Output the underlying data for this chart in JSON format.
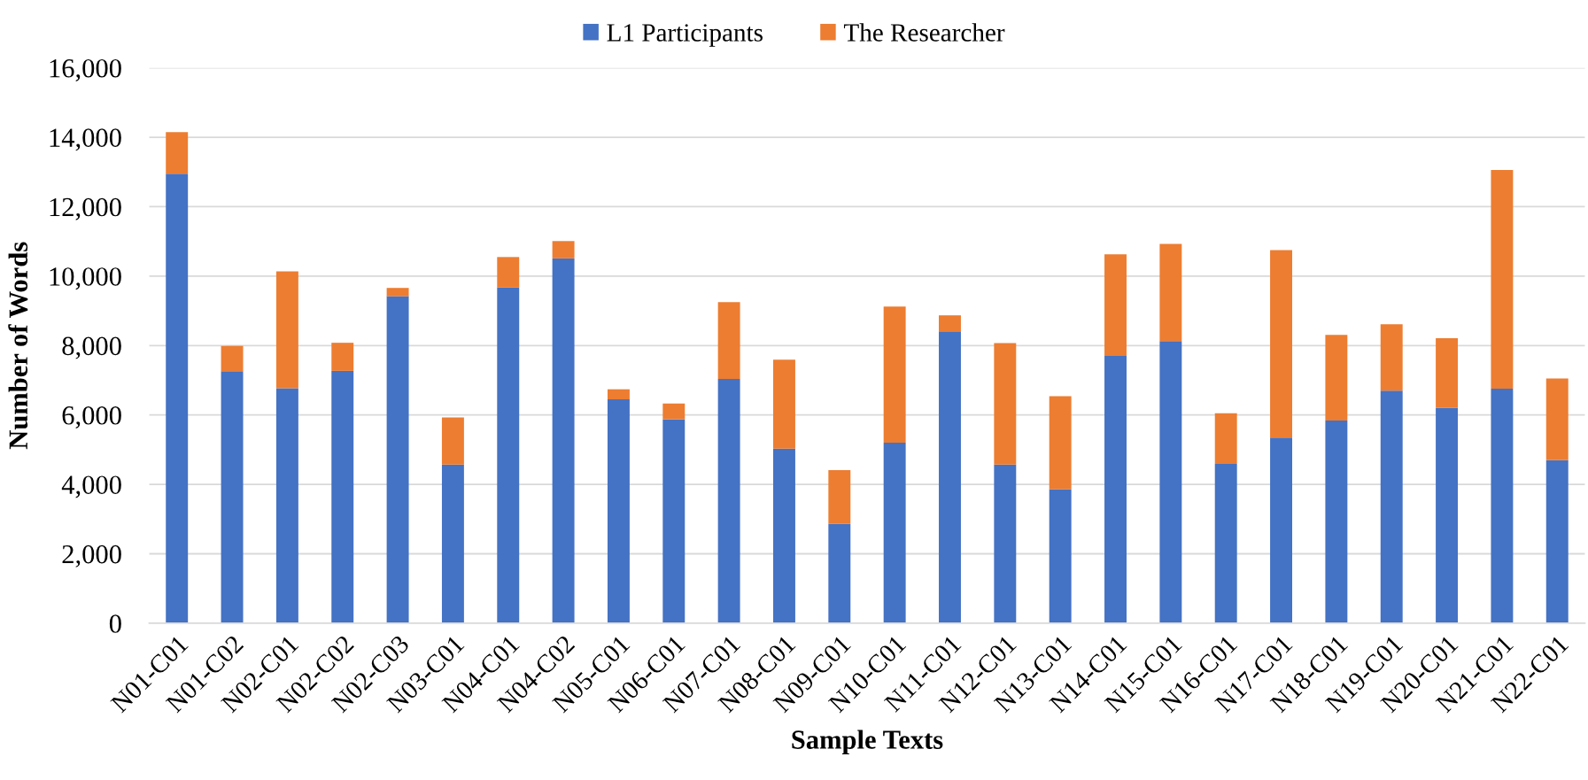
{
  "chart_data": {
    "type": "bar",
    "xlabel": "Sample Texts",
    "ylabel": "Number of Words",
    "categories": [
      "N01-C01",
      "N01-C02",
      "N02-C01",
      "N02-C02",
      "N02-C03",
      "N03-C01",
      "N04-C01",
      "N04-C02",
      "N05-C01",
      "N06-C01",
      "N07-C01",
      "N08-C01",
      "N09-C01",
      "N10-C01",
      "N11-C01",
      "N12-C01",
      "N13-C01",
      "N14-C01",
      "N15-C01",
      "N16-C01",
      "N17-C01",
      "N18-C01",
      "N19-C01",
      "N20-C01",
      "N21-C01",
      "N22-C01"
    ],
    "series": [
      {
        "name": "L1 Participants",
        "color": "#4472c4",
        "values": [
          12950,
          7260,
          6770,
          7270,
          9420,
          4570,
          9670,
          10510,
          6450,
          5880,
          7040,
          5030,
          2860,
          5200,
          8410,
          4570,
          3860,
          7700,
          8130,
          4590,
          5350,
          5840,
          6700,
          6210,
          6760,
          4700
        ]
      },
      {
        "name": "The Researcher",
        "color": "#ed7d31",
        "values": [
          1200,
          730,
          3370,
          810,
          240,
          1360,
          880,
          500,
          290,
          450,
          2210,
          2560,
          1550,
          3920,
          460,
          3500,
          2680,
          2930,
          2800,
          1460,
          5400,
          2470,
          1910,
          2000,
          6300,
          2350
        ]
      }
    ],
    "stacked": true,
    "ylim": [
      0,
      16000
    ],
    "yticks": [
      0,
      {
        "value": 2000,
        "label": "2,000"
      },
      {
        "value": 4000,
        "label": "4,000"
      },
      {
        "value": 6000,
        "label": "6,000"
      },
      {
        "value": 8000,
        "label": "8,000"
      },
      {
        "value": 10000,
        "label": "10,000"
      },
      {
        "value": 12000,
        "label": "12,000"
      },
      {
        "value": 14000,
        "label": "14,000"
      },
      {
        "value": 16000,
        "label": "16,000"
      }
    ],
    "grid": "y",
    "legend": "top"
  }
}
